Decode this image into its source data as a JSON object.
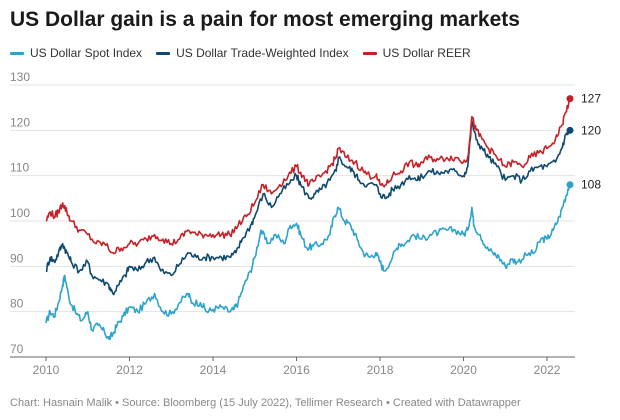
{
  "chart_data": {
    "type": "line",
    "title": "US Dollar gain is a pain for most emerging markets",
    "source": "Chart: Hasnain Malik • Source: Bloomberg (15 July 2022), Tellimer Research • Created with Datawrapper",
    "xlim": [
      2010,
      2022.55
    ],
    "ylim": [
      70,
      130
    ],
    "y_ticks": [
      70,
      80,
      90,
      100,
      110,
      120,
      130
    ],
    "x_ticks": [
      2010,
      2012,
      2014,
      2016,
      2018,
      2020,
      2022
    ],
    "grid": true,
    "legend_position": "top-left",
    "series": [
      {
        "name": "US Dollar Spot Index",
        "color": "#2ea3cc",
        "end_label": "108",
        "points": [
          [
            2010.0,
            77.5
          ],
          [
            2010.1,
            80
          ],
          [
            2010.2,
            79
          ],
          [
            2010.3,
            82
          ],
          [
            2010.4,
            86
          ],
          [
            2010.45,
            88
          ],
          [
            2010.55,
            83
          ],
          [
            2010.7,
            80
          ],
          [
            2010.85,
            78
          ],
          [
            2011.0,
            80
          ],
          [
            2011.1,
            76
          ],
          [
            2011.25,
            77
          ],
          [
            2011.4,
            75.5
          ],
          [
            2011.5,
            74
          ],
          [
            2011.6,
            75
          ],
          [
            2011.7,
            77
          ],
          [
            2011.85,
            79
          ],
          [
            2012.0,
            81
          ],
          [
            2012.2,
            80
          ],
          [
            2012.4,
            82
          ],
          [
            2012.6,
            84
          ],
          [
            2012.8,
            80
          ],
          [
            2013.0,
            79.5
          ],
          [
            2013.2,
            82
          ],
          [
            2013.4,
            84
          ],
          [
            2013.5,
            82
          ],
          [
            2013.7,
            82
          ],
          [
            2013.85,
            80
          ],
          [
            2014.0,
            80.5
          ],
          [
            2014.2,
            81
          ],
          [
            2014.4,
            80
          ],
          [
            2014.5,
            80.5
          ],
          [
            2014.6,
            82
          ],
          [
            2014.75,
            86
          ],
          [
            2014.9,
            89
          ],
          [
            2015.0,
            92
          ],
          [
            2015.15,
            98
          ],
          [
            2015.3,
            95
          ],
          [
            2015.5,
            97
          ],
          [
            2015.7,
            95
          ],
          [
            2015.85,
            99
          ],
          [
            2016.0,
            99.5
          ],
          [
            2016.1,
            97
          ],
          [
            2016.25,
            94
          ],
          [
            2016.4,
            94.5
          ],
          [
            2016.6,
            95
          ],
          [
            2016.8,
            97
          ],
          [
            2016.9,
            101
          ],
          [
            2017.0,
            103
          ],
          [
            2017.15,
            100
          ],
          [
            2017.3,
            99
          ],
          [
            2017.45,
            96
          ],
          [
            2017.6,
            93
          ],
          [
            2017.75,
            92
          ],
          [
            2017.9,
            93
          ],
          [
            2018.0,
            91
          ],
          [
            2018.1,
            89
          ],
          [
            2018.3,
            92
          ],
          [
            2018.45,
            95
          ],
          [
            2018.6,
            95
          ],
          [
            2018.8,
            97
          ],
          [
            2019.0,
            96
          ],
          [
            2019.2,
            97
          ],
          [
            2019.4,
            97.5
          ],
          [
            2019.6,
            98
          ],
          [
            2019.8,
            98
          ],
          [
            2020.0,
            97
          ],
          [
            2020.1,
            98
          ],
          [
            2020.2,
            103
          ],
          [
            2020.25,
            99
          ],
          [
            2020.4,
            97
          ],
          [
            2020.55,
            94
          ],
          [
            2020.7,
            93
          ],
          [
            2020.85,
            92
          ],
          [
            2021.0,
            90
          ],
          [
            2021.15,
            91.5
          ],
          [
            2021.3,
            91
          ],
          [
            2021.5,
            92.5
          ],
          [
            2021.7,
            93
          ],
          [
            2021.85,
            96
          ],
          [
            2022.0,
            96
          ],
          [
            2022.15,
            98
          ],
          [
            2022.3,
            101
          ],
          [
            2022.4,
            104
          ],
          [
            2022.5,
            107
          ],
          [
            2022.55,
            108
          ]
        ]
      },
      {
        "name": "US Dollar Trade-Weighted Index",
        "color": "#0f4a6e",
        "end_label": "120",
        "points": [
          [
            2010.0,
            89
          ],
          [
            2010.1,
            92
          ],
          [
            2010.2,
            91
          ],
          [
            2010.3,
            93
          ],
          [
            2010.4,
            95
          ],
          [
            2010.5,
            93
          ],
          [
            2010.6,
            91
          ],
          [
            2010.8,
            89
          ],
          [
            2011.0,
            91
          ],
          [
            2011.1,
            88
          ],
          [
            2011.3,
            87
          ],
          [
            2011.5,
            86
          ],
          [
            2011.6,
            84
          ],
          [
            2011.75,
            86
          ],
          [
            2011.9,
            88
          ],
          [
            2012.0,
            90
          ],
          [
            2012.2,
            89
          ],
          [
            2012.4,
            91
          ],
          [
            2012.6,
            92
          ],
          [
            2012.75,
            89
          ],
          [
            2013.0,
            88
          ],
          [
            2013.2,
            90.5
          ],
          [
            2013.4,
            93
          ],
          [
            2013.6,
            92
          ],
          [
            2013.8,
            92
          ],
          [
            2014.0,
            92
          ],
          [
            2014.2,
            92
          ],
          [
            2014.4,
            92
          ],
          [
            2014.55,
            93
          ],
          [
            2014.7,
            96
          ],
          [
            2014.9,
            99
          ],
          [
            2015.0,
            101
          ],
          [
            2015.2,
            106
          ],
          [
            2015.4,
            103
          ],
          [
            2015.6,
            106
          ],
          [
            2015.8,
            108
          ],
          [
            2016.0,
            110
          ],
          [
            2016.1,
            108
          ],
          [
            2016.3,
            105
          ],
          [
            2016.45,
            106
          ],
          [
            2016.6,
            107
          ],
          [
            2016.8,
            109
          ],
          [
            2016.95,
            111
          ],
          [
            2017.0,
            114
          ],
          [
            2017.2,
            112
          ],
          [
            2017.35,
            111
          ],
          [
            2017.5,
            109
          ],
          [
            2017.7,
            108
          ],
          [
            2017.9,
            108
          ],
          [
            2018.0,
            106
          ],
          [
            2018.15,
            105
          ],
          [
            2018.3,
            107
          ],
          [
            2018.5,
            108
          ],
          [
            2018.7,
            110
          ],
          [
            2018.9,
            109
          ],
          [
            2019.0,
            110
          ],
          [
            2019.2,
            111
          ],
          [
            2019.4,
            110.5
          ],
          [
            2019.6,
            111
          ],
          [
            2019.8,
            111
          ],
          [
            2020.0,
            110
          ],
          [
            2020.1,
            112
          ],
          [
            2020.2,
            122
          ],
          [
            2020.3,
            118
          ],
          [
            2020.45,
            116
          ],
          [
            2020.6,
            114
          ],
          [
            2020.8,
            112
          ],
          [
            2021.0,
            109
          ],
          [
            2021.2,
            110
          ],
          [
            2021.4,
            109
          ],
          [
            2021.6,
            111
          ],
          [
            2021.8,
            112
          ],
          [
            2022.0,
            112
          ],
          [
            2022.2,
            113
          ],
          [
            2022.35,
            116
          ],
          [
            2022.45,
            119
          ],
          [
            2022.55,
            120
          ]
        ]
      },
      {
        "name": "US Dollar REER",
        "color": "#c82027",
        "end_label": "127",
        "points": [
          [
            2010.0,
            100
          ],
          [
            2010.1,
            102
          ],
          [
            2010.2,
            101
          ],
          [
            2010.3,
            102
          ],
          [
            2010.4,
            104
          ],
          [
            2010.5,
            102
          ],
          [
            2010.6,
            100
          ],
          [
            2010.8,
            98
          ],
          [
            2011.0,
            97
          ],
          [
            2011.2,
            95
          ],
          [
            2011.4,
            95
          ],
          [
            2011.6,
            93
          ],
          [
            2011.8,
            94
          ],
          [
            2012.0,
            95
          ],
          [
            2012.2,
            95
          ],
          [
            2012.4,
            96
          ],
          [
            2012.6,
            97
          ],
          [
            2012.8,
            96
          ],
          [
            2013.0,
            95
          ],
          [
            2013.2,
            96
          ],
          [
            2013.4,
            98
          ],
          [
            2013.6,
            97
          ],
          [
            2013.8,
            97
          ],
          [
            2014.0,
            97
          ],
          [
            2014.2,
            97
          ],
          [
            2014.4,
            97
          ],
          [
            2014.6,
            99
          ],
          [
            2014.8,
            101
          ],
          [
            2015.0,
            104
          ],
          [
            2015.2,
            108
          ],
          [
            2015.4,
            106
          ],
          [
            2015.6,
            108
          ],
          [
            2015.8,
            110
          ],
          [
            2016.0,
            112
          ],
          [
            2016.15,
            110
          ],
          [
            2016.3,
            108
          ],
          [
            2016.45,
            109
          ],
          [
            2016.6,
            110
          ],
          [
            2016.8,
            112
          ],
          [
            2016.95,
            114
          ],
          [
            2017.0,
            116
          ],
          [
            2017.2,
            114
          ],
          [
            2017.4,
            113
          ],
          [
            2017.6,
            111
          ],
          [
            2017.75,
            110
          ],
          [
            2017.9,
            110
          ],
          [
            2018.0,
            108
          ],
          [
            2018.15,
            108
          ],
          [
            2018.3,
            110
          ],
          [
            2018.5,
            111
          ],
          [
            2018.7,
            113
          ],
          [
            2018.9,
            112
          ],
          [
            2019.0,
            113
          ],
          [
            2019.2,
            114
          ],
          [
            2019.4,
            113.5
          ],
          [
            2019.6,
            114
          ],
          [
            2019.8,
            114
          ],
          [
            2020.0,
            113
          ],
          [
            2020.1,
            114
          ],
          [
            2020.2,
            123
          ],
          [
            2020.3,
            120
          ],
          [
            2020.45,
            118
          ],
          [
            2020.6,
            116
          ],
          [
            2020.8,
            114
          ],
          [
            2021.0,
            112
          ],
          [
            2021.2,
            113
          ],
          [
            2021.4,
            112
          ],
          [
            2021.6,
            114
          ],
          [
            2021.8,
            115
          ],
          [
            2022.0,
            116
          ],
          [
            2022.2,
            118
          ],
          [
            2022.35,
            121
          ],
          [
            2022.45,
            124
          ],
          [
            2022.55,
            127
          ]
        ]
      }
    ]
  }
}
